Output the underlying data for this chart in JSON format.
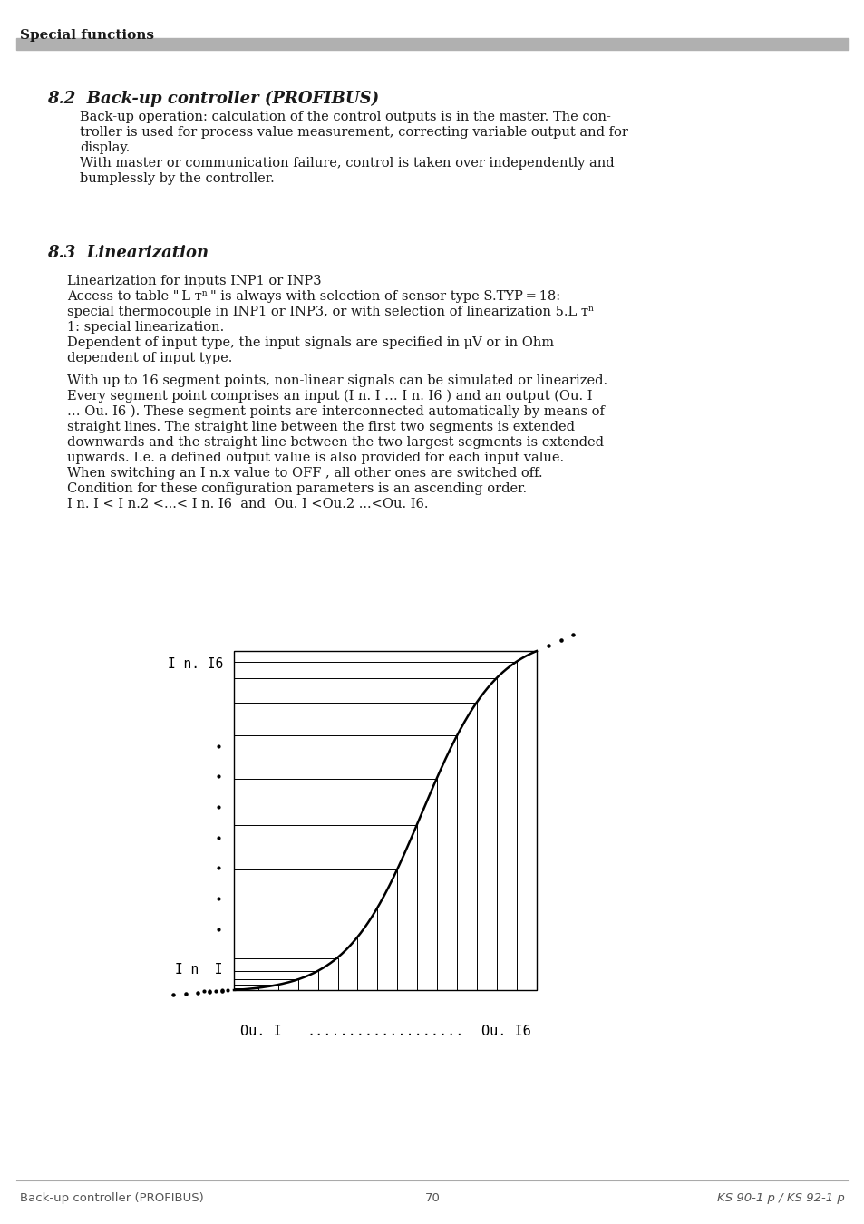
{
  "page_bg": "#ffffff",
  "header_text": "Special functions",
  "header_bar_color": "#b0b0b0",
  "section_82_title": "8.2  Back-up controller (PROFIBUS)",
  "section_82_body": [
    "Back-up operation: calculation of the control outputs is in the master. The con-",
    "troller is used for process value measurement, correcting variable output and for",
    "display.",
    "With master or communication failure, control is taken over independently and",
    "bumplessly by the controller."
  ],
  "section_83_title": "8.3  Linearization",
  "section_83_body_1": [
    "Linearization for inputs INP1 or INP3",
    "Access to table \" L ᴛⁿ \" is always with selection of sensor type S.TYP = 18:",
    "special thermocouple in INP1 or INP3, or with selection of linearization 5.L ᴛⁿ",
    "1: special linearization.",
    "Dependent of input type, the input signals are specified in μV or in Ohm",
    "dependent of input type."
  ],
  "section_83_body_2": [
    "With up to 16 segment points, non-linear signals can be simulated or linearized.",
    "Every segment point comprises an input (I n. I … I n. I6 ) and an output (Ou. I",
    "… Ou. I6 ). These segment points are interconnected automatically by means of",
    "straight lines. The straight line between the first two segments is extended",
    "downwards and the straight line between the two largest segments is extended",
    "upwards. I.e. a defined output value is also provided for each input value.",
    "When switching an I n.x value to OFF , all other ones are switched off.",
    "Condition for these configuration parameters is an ascending order.",
    "I n. I < I n.2 <...< I n. I6  and  Ou. I <Ou.2 ...<Ou. I6."
  ],
  "diag_label_yn16": "I n. I6",
  "diag_label_yn1": "I n  I",
  "diag_label_x1": "Ou. I",
  "diag_label_x16": "Ou. I6",
  "footer_left": "Back-up controller (PROFIBUS)",
  "footer_center": "70",
  "footer_right": "KS 90-1 p / KS 92-1 p",
  "text_color": "#1a1a1a"
}
